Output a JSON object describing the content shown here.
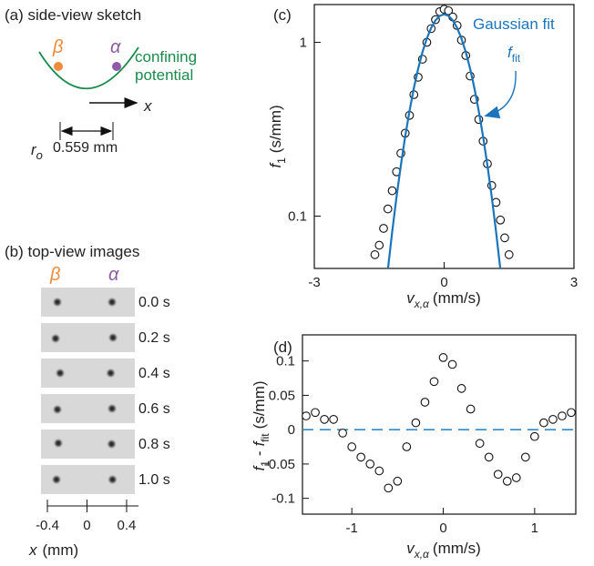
{
  "panel_a": {
    "label": "(a) side-view sketch",
    "beta": "β",
    "alpha": "α",
    "potential_line1": "confining",
    "potential_line2": "potential",
    "axis": "x",
    "radius_symbol": "r",
    "radius_subscript": "o",
    "radius_value": "0.559 mm"
  },
  "panel_b": {
    "label": "(b) top-view images",
    "beta": "β",
    "alpha": "α",
    "times": [
      "0.0 s",
      "0.2 s",
      "0.4 s",
      "0.6 s",
      "0.8 s",
      "1.0 s"
    ],
    "xlim": [
      -0.4,
      0.52
    ],
    "xticks": [
      -0.4,
      0,
      0.4
    ],
    "x_symbol": "x",
    "x_unit": "(mm)"
  },
  "chart_data": [
    {
      "type": "scatter",
      "label": "(c)",
      "log_y": true,
      "xlim": [
        -3,
        3
      ],
      "ylim": [
        0.05,
        1.65
      ],
      "xticks": [
        -3,
        0,
        3
      ],
      "yticks": [
        0.1,
        1
      ],
      "x_label": {
        "symbol": "v",
        "subscript": "x,α",
        "unit": "(mm/s)"
      },
      "y_label": {
        "symbol": "f",
        "subscript": "1",
        "unit": "(s/mm)"
      },
      "fit_symbol": "f",
      "fit_subscript": "fit",
      "series": [
        {
          "style": "markers",
          "color": "#111111",
          "x": [
            -1.6,
            -1.5,
            -1.4,
            -1.3,
            -1.2,
            -1.1,
            -1.0,
            -0.9,
            -0.8,
            -0.7,
            -0.6,
            -0.5,
            -0.4,
            -0.3,
            -0.2,
            -0.1,
            0,
            0.1,
            0.2,
            0.3,
            0.4,
            0.5,
            0.6,
            0.7,
            0.8,
            0.9,
            1.0,
            1.1,
            1.2,
            1.3,
            1.4,
            1.5
          ],
          "values": [
            0.06,
            0.068,
            0.085,
            0.11,
            0.14,
            0.18,
            0.23,
            0.3,
            0.38,
            0.5,
            0.63,
            0.8,
            1.0,
            1.2,
            1.35,
            1.5,
            1.55,
            1.52,
            1.4,
            1.25,
            1.03,
            0.84,
            0.64,
            0.47,
            0.36,
            0.27,
            0.2,
            0.15,
            0.12,
            0.095,
            0.075,
            0.06
          ]
        },
        {
          "name": "Gaussian fit",
          "style": "line",
          "color": "#1a75bc",
          "x": [
            -1.3,
            -1.2,
            -1.1,
            -1.0,
            -0.9,
            -0.8,
            -0.7,
            -0.6,
            -0.5,
            -0.4,
            -0.3,
            -0.2,
            -0.1,
            0,
            0.1,
            0.2,
            0.3,
            0.4,
            0.5,
            0.6,
            0.7,
            0.8,
            0.9,
            1.0,
            1.1,
            1.2,
            1.3
          ],
          "values": [
            0.0493,
            0.0814,
            0.129,
            0.196,
            0.287,
            0.403,
            0.544,
            0.706,
            0.879,
            1.053,
            1.211,
            1.338,
            1.421,
            1.45,
            1.421,
            1.338,
            1.211,
            1.053,
            0.879,
            0.706,
            0.544,
            0.403,
            0.287,
            0.196,
            0.129,
            0.0814,
            0.0493
          ]
        }
      ]
    },
    {
      "type": "scatter",
      "label": "(d)",
      "xlim": [
        -1.54,
        1.45
      ],
      "ylim": [
        -0.123,
        0.138
      ],
      "xticks": [
        -1,
        0,
        1
      ],
      "yticks": [
        -0.1,
        -0.05,
        0,
        0.05,
        0.1
      ],
      "hline": 0,
      "hline_color": "#2e8bc9",
      "x_label": {
        "symbol": "v",
        "subscript": "x,α",
        "unit": "(mm/s)"
      },
      "y_label": {
        "symbol": "f",
        "subscript": "1",
        "operator": "-",
        "symbol2": "f",
        "subscript2": "fit",
        "unit": "(s/mm)"
      },
      "series": [
        {
          "style": "markers",
          "color": "#111111",
          "x": [
            -1.5,
            -1.4,
            -1.3,
            -1.2,
            -1.1,
            -1.0,
            -0.9,
            -0.8,
            -0.7,
            -0.6,
            -0.5,
            -0.4,
            -0.3,
            -0.2,
            -0.1,
            0,
            0.1,
            0.2,
            0.3,
            0.4,
            0.5,
            0.6,
            0.7,
            0.8,
            0.9,
            1.0,
            1.1,
            1.2,
            1.3,
            1.4
          ],
          "values": [
            0.02,
            0.025,
            0.015,
            0.015,
            -0.005,
            -0.025,
            -0.04,
            -0.05,
            -0.06,
            -0.085,
            -0.075,
            -0.025,
            0.01,
            0.04,
            0.07,
            0.105,
            0.095,
            0.06,
            0.03,
            -0.02,
            -0.04,
            -0.065,
            -0.075,
            -0.07,
            -0.04,
            -0.01,
            0.01,
            0.015,
            0.02,
            0.025
          ]
        }
      ]
    }
  ]
}
